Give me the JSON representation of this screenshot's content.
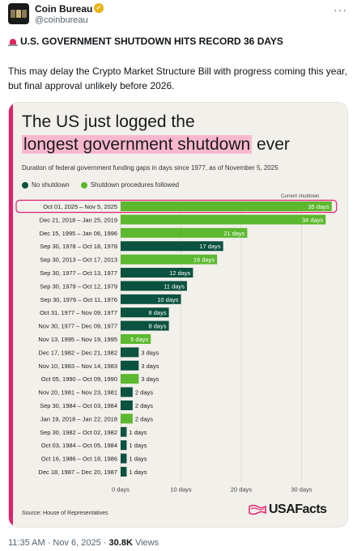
{
  "tweet": {
    "author_name": "Coin Bureau",
    "handle": "@coinbureau",
    "more_label": "···",
    "title_text": "U.S. GOVERNMENT SHUTDOWN HITS RECORD 36 DAYS",
    "body_text": "This may delay the Crypto Market Structure Bill with progress coming this year, but final approval unlikely before 2026.",
    "time_date": "11:35 AM · Nov 6, 2025 · ",
    "views_count": "30.8K",
    "views_label": " Views"
  },
  "card": {
    "headline_line1": "The US just logged the",
    "headline_highlight": "longest government shutdown",
    "headline_tail": " ever",
    "subtitle": "Duration of federal government funding gaps in days since 1977, as of November 5, 2025",
    "legend_no": "No shutdown",
    "legend_yes": "Shutdown procedures followed",
    "current_label": "Current shutdown",
    "source": "Source: House of Representatives",
    "brand": "USAFacts"
  },
  "colors": {
    "no_shutdown": "#0b5240",
    "shutdown_procedures": "#5cb82e",
    "accent_pink": "#e0206f",
    "highlight_pink": "#f9b8d0"
  },
  "chart_data": {
    "type": "bar",
    "orientation": "horizontal",
    "categories": [
      "Oct 01, 2025 – Nov 5, 2025",
      "Dec 21, 2018 – Jan 25, 2019",
      "Dec 15, 1995 – Jan 06, 1996",
      "Sep 30, 1978 – Oct 18, 1978",
      "Sep 30, 2013 – Oct 17, 2013",
      "Sep 30, 1977 – Oct 13, 1977",
      "Sep 30, 1979 – Oct 12, 1979",
      "Sep 30, 1976 – Oct 11, 1976",
      "Oct 31, 1977 – Nov 09, 1977",
      "Nov 30, 1977 – Dec 09, 1977",
      "Nov 13, 1995 – Nov 19, 1995",
      "Dec 17, 1982 – Dec 21, 1982",
      "Nov 10, 1983 – Nov 14, 1983",
      "Oct 05, 1990 – Oct 09, 1990",
      "Nov 20, 1981 – Nov 23, 1981",
      "Sep 30, 1984 – Oct 03, 1984",
      "Jan 19, 2018 – Jan 22, 2018",
      "Sep 30, 1982 – Oct 02, 1982",
      "Oct 03, 1984 – Oct 05, 1984",
      "Oct 16, 1986 – Oct 18, 1986",
      "Dec 18, 1987 – Dec 20, 1987"
    ],
    "values": [
      35,
      34,
      21,
      17,
      16,
      12,
      11,
      10,
      8,
      8,
      5,
      3,
      3,
      3,
      2,
      2,
      2,
      1,
      1,
      1,
      1
    ],
    "value_labels": [
      "35 days",
      "34 days",
      "21 days",
      "17 days",
      "16 days",
      "12 days",
      "11 days",
      "10 days",
      "8 days",
      "8 days",
      "5 days",
      "3 days",
      "3 days",
      "3 days",
      "2 days",
      "2 days",
      "2 days",
      "1 days",
      "1 days",
      "1 days",
      "1 days"
    ],
    "procedures_followed": [
      true,
      true,
      true,
      false,
      true,
      false,
      false,
      false,
      false,
      false,
      true,
      false,
      false,
      true,
      false,
      false,
      true,
      false,
      false,
      false,
      false
    ],
    "current_index": 0,
    "xlim": [
      0,
      35
    ],
    "x_ticks": [
      0,
      10,
      20,
      30
    ],
    "x_tick_labels": [
      "0 days",
      "10 days",
      "20 days",
      "30 days"
    ],
    "grid": true,
    "legend_position": "top-left"
  }
}
